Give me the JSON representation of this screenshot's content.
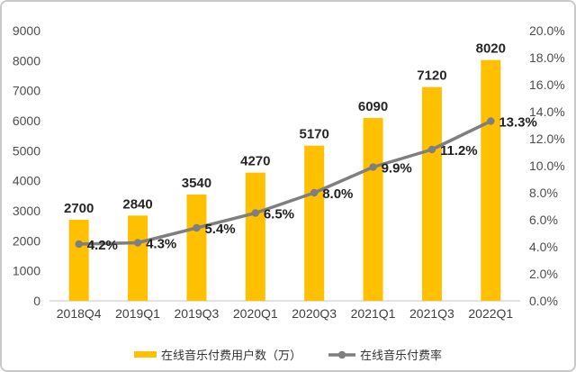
{
  "chart_data": {
    "type": "bar",
    "subtype": "bar+line combo, dual axis",
    "categories": [
      "2018Q4",
      "2019Q1",
      "2019Q3",
      "2020Q1",
      "2020Q3",
      "2021Q1",
      "2021Q3",
      "2022Q1"
    ],
    "series": [
      {
        "name": "在线音乐付费用户数（万）",
        "type": "bar",
        "axis": "left",
        "color": "#FFC000",
        "values": [
          2700,
          2840,
          3540,
          4270,
          5170,
          6090,
          7120,
          8020
        ],
        "labels": [
          "2700",
          "2840",
          "3540",
          "4270",
          "5170",
          "6090",
          "7120",
          "8020"
        ]
      },
      {
        "name": "在线音乐付费率",
        "type": "line",
        "axis": "right",
        "color": "#7F7F7F",
        "values": [
          4.2,
          4.3,
          5.4,
          6.5,
          8.0,
          9.9,
          11.2,
          13.3
        ],
        "labels": [
          "4.2%",
          "4.3%",
          "5.4%",
          "6.5%",
          "8.0%",
          "9.9%",
          "11.2%",
          "13.3%"
        ]
      }
    ],
    "left_axis": {
      "min": 0,
      "max": 9000,
      "step": 1000,
      "tick_labels": [
        "0",
        "1000",
        "2000",
        "3000",
        "4000",
        "5000",
        "6000",
        "7000",
        "8000",
        "9000"
      ]
    },
    "right_axis": {
      "min": 0,
      "max": 20,
      "step": 2,
      "tick_labels": [
        "0.0%",
        "2.0%",
        "4.0%",
        "6.0%",
        "8.0%",
        "10.0%",
        "12.0%",
        "14.0%",
        "16.0%",
        "18.0%",
        "20.0%"
      ]
    },
    "grid": false,
    "legend_position": "bottom",
    "legend": [
      {
        "label": "在线音乐付费用户数（万）",
        "swatch": "bar",
        "color": "#FFC000"
      },
      {
        "label": "在线音乐付费率",
        "swatch": "line-dot",
        "color": "#7F7F7F"
      }
    ],
    "title": "",
    "xlabel": "",
    "ylabel": ""
  },
  "colors": {
    "bar": "#FFC000",
    "line": "#7F7F7F",
    "bar_label_text": "#262626",
    "axis_text": "#4d4d4d",
    "axis_line": "#d9d9d9",
    "frame_border": "#c9c9c9",
    "background": "#ffffff"
  }
}
